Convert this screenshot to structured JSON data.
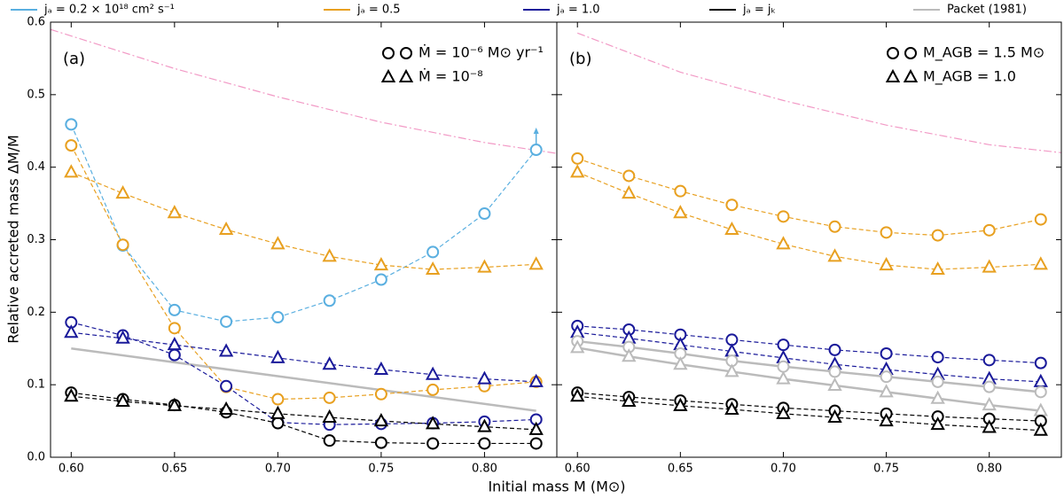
{
  "figure": {
    "xlabel": "Initial mass M (M⊙)",
    "ylabel": "Relative accreted mass ΔM/M",
    "legend": [
      {
        "name": "jₐ = 0.2 × 10¹⁸ cm² s⁻¹",
        "color": "#5aafe0"
      },
      {
        "name": "jₐ = 0.5",
        "color": "#e8a020"
      },
      {
        "name": "jₐ = 1.0",
        "color": "#1a1a9a"
      },
      {
        "name": "jₐ = jₖ",
        "color": "#000000"
      },
      {
        "name": "Packet (1981)",
        "color": "#bbbbbb"
      }
    ]
  },
  "chart_data": [
    {
      "type": "line",
      "label": "(a)",
      "xlim": [
        0.59,
        0.835
      ],
      "ylim": [
        0,
        0.6
      ],
      "xticks": [
        {
          "value": 0.6,
          "label": "0.60"
        },
        0.65,
        {
          "value": 0.7,
          "label": "0.70"
        },
        0.75,
        {
          "value": 0.8,
          "label": "0.80"
        }
      ],
      "yticks": [
        {
          "value": 0,
          "label": "0.0"
        },
        0.1,
        0.2,
        0.3,
        0.4,
        0.5,
        0.6
      ],
      "ytick_labels": true,
      "x": [
        0.6,
        0.625,
        0.65,
        0.675,
        0.7,
        0.725,
        0.75,
        0.775,
        0.8,
        0.825
      ],
      "marker_legend": [
        {
          "label": "Ṁ = 10⁻⁶ M⊙ yr⁻¹",
          "marker": "circle"
        },
        {
          "label": "Ṁ = 10⁻⁸",
          "marker": "triangle"
        }
      ],
      "series": [
        {
          "color": "#f29ac6",
          "line": "dashdot",
          "marker": "none",
          "x": [
            0.59,
            0.65,
            0.7,
            0.75,
            0.8,
            0.835
          ],
          "values": [
            0.59,
            0.536,
            0.497,
            0.462,
            0.434,
            0.419
          ]
        },
        {
          "color": "#bbbbbb",
          "line": "solid",
          "marker": "none",
          "x": [
            0.6,
            0.825
          ],
          "values": [
            0.15,
            0.064
          ]
        },
        {
          "color": "#5aafe0",
          "line": "dashed",
          "marker": "circle",
          "lower_limit_last": true,
          "values": [
            0.459,
            0.292,
            0.203,
            0.187,
            0.193,
            0.216,
            0.245,
            0.283,
            0.336,
            0.424
          ]
        },
        {
          "color": "#e8a020",
          "line": "dashed",
          "marker": "circle",
          "values": [
            0.43,
            0.293,
            0.178,
            0.097,
            0.08,
            0.082,
            0.087,
            0.093,
            0.098,
            0.104
          ]
        },
        {
          "color": "#e8a020",
          "line": "dashed",
          "marker": "triangle",
          "values": [
            0.393,
            0.364,
            0.337,
            0.314,
            0.294,
            0.277,
            0.265,
            0.259,
            0.262,
            0.266
          ]
        },
        {
          "color": "#1a1a9a",
          "line": "dashed",
          "marker": "circle",
          "values": [
            0.186,
            0.168,
            0.141,
            0.098,
            0.048,
            0.045,
            0.046,
            0.047,
            0.049,
            0.052
          ]
        },
        {
          "color": "#1a1a9a",
          "line": "dashed",
          "marker": "triangle",
          "values": [
            0.172,
            0.164,
            0.155,
            0.146,
            0.137,
            0.128,
            0.121,
            0.114,
            0.108,
            0.104
          ]
        },
        {
          "color": "#000000",
          "line": "dashed",
          "marker": "circle",
          "values": [
            0.089,
            0.08,
            0.072,
            0.062,
            0.047,
            0.023,
            0.02,
            0.019,
            0.019,
            0.019
          ]
        },
        {
          "color": "#000000",
          "line": "dashed",
          "marker": "triangle",
          "values": [
            0.084,
            0.077,
            0.071,
            0.066,
            0.06,
            0.055,
            0.05,
            0.046,
            0.042,
            0.038
          ]
        }
      ]
    },
    {
      "type": "line",
      "label": "(b)",
      "xlim": [
        0.59,
        0.835
      ],
      "ylim": [
        0,
        0.6
      ],
      "xticks": [
        {
          "value": 0.6,
          "label": "0.60"
        },
        0.65,
        {
          "value": 0.7,
          "label": "0.70"
        },
        0.75,
        {
          "value": 0.8,
          "label": "0.80"
        }
      ],
      "yticks": [
        0,
        0.1,
        0.2,
        0.3,
        0.4,
        0.5,
        0.6
      ],
      "ytick_labels": false,
      "x": [
        0.6,
        0.625,
        0.65,
        0.675,
        0.7,
        0.725,
        0.75,
        0.775,
        0.8,
        0.825
      ],
      "marker_legend": [
        {
          "label": "M_AGB = 1.5 M⊙",
          "marker": "circle"
        },
        {
          "label": "M_AGB = 1.0",
          "marker": "triangle"
        }
      ],
      "series": [
        {
          "color": "#f29ac6",
          "line": "dashdot",
          "marker": "none",
          "x": [
            0.6,
            0.65,
            0.7,
            0.75,
            0.8,
            0.835
          ],
          "values": [
            0.585,
            0.531,
            0.492,
            0.458,
            0.431,
            0.42
          ]
        },
        {
          "color": "#e8a020",
          "line": "dashed",
          "marker": "circle",
          "values": [
            0.412,
            0.388,
            0.367,
            0.348,
            0.332,
            0.318,
            0.31,
            0.306,
            0.313,
            0.328
          ]
        },
        {
          "color": "#e8a020",
          "line": "dashed",
          "marker": "triangle",
          "values": [
            0.393,
            0.364,
            0.337,
            0.314,
            0.294,
            0.277,
            0.265,
            0.259,
            0.262,
            0.266
          ]
        },
        {
          "color": "#1a1a9a",
          "line": "dashed",
          "marker": "circle",
          "values": [
            0.181,
            0.176,
            0.169,
            0.162,
            0.155,
            0.148,
            0.143,
            0.138,
            0.134,
            0.13
          ]
        },
        {
          "color": "#1a1a9a",
          "line": "dashed",
          "marker": "triangle",
          "values": [
            0.172,
            0.164,
            0.155,
            0.146,
            0.137,
            0.128,
            0.121,
            0.114,
            0.108,
            0.104
          ]
        },
        {
          "color": "#bbbbbb",
          "line": "solid",
          "marker": "circle",
          "values": [
            0.16,
            0.152,
            0.143,
            0.133,
            0.125,
            0.118,
            0.111,
            0.104,
            0.097,
            0.09
          ]
        },
        {
          "color": "#bbbbbb",
          "line": "solid",
          "marker": "triangle",
          "values": [
            0.151,
            0.139,
            0.128,
            0.118,
            0.108,
            0.099,
            0.09,
            0.081,
            0.072,
            0.064
          ]
        },
        {
          "color": "#000000",
          "line": "dashed",
          "marker": "circle",
          "values": [
            0.089,
            0.083,
            0.078,
            0.073,
            0.068,
            0.064,
            0.06,
            0.056,
            0.053,
            0.05
          ]
        },
        {
          "color": "#000000",
          "line": "dashed",
          "marker": "triangle",
          "values": [
            0.084,
            0.077,
            0.071,
            0.066,
            0.06,
            0.055,
            0.05,
            0.045,
            0.041,
            0.037
          ]
        }
      ]
    }
  ]
}
